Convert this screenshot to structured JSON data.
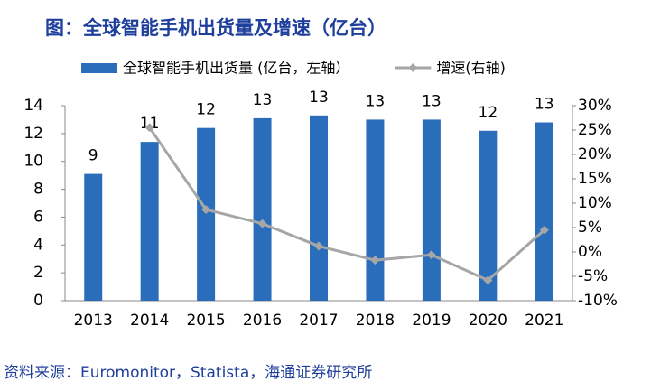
{
  "chart_data": {
    "type": "bar",
    "title": "图：全球智能手机出货量及增速（亿台）",
    "source": "资料来源：Euromonitor，Statista，海通证券研究所",
    "categories": [
      "2013",
      "2014",
      "2015",
      "2016",
      "2017",
      "2018",
      "2019",
      "2020",
      "2021"
    ],
    "series": [
      {
        "name": "全球智能手机出货量 (亿台，左轴）",
        "color": "#2a6ebb",
        "type": "bar",
        "values": [
          9.1,
          11.4,
          12.4,
          13.1,
          13.3,
          13.0,
          13.0,
          12.2,
          12.8
        ],
        "value_labels": [
          "9",
          "11",
          "12",
          "13",
          "13",
          "13",
          "13",
          "12",
          "13"
        ]
      },
      {
        "name": "增速(右轴)",
        "color": "#a6a6a6",
        "type": "line",
        "axis": "y2",
        "values": [
          null,
          25.5,
          8.7,
          5.8,
          1.2,
          -1.7,
          -0.6,
          -5.8,
          4.5
        ]
      }
    ],
    "ylim": [
      0,
      14
    ],
    "yticks": [
      0,
      2,
      4,
      6,
      8,
      10,
      12,
      14
    ],
    "y2lim": [
      -10,
      30
    ],
    "y2ticks": [
      {
        "value": -10,
        "label": "-10%"
      },
      {
        "value": -5,
        "label": "-5%"
      },
      {
        "value": 0,
        "label": "0%"
      },
      {
        "value": 5,
        "label": "5%"
      },
      {
        "value": 10,
        "label": "10%"
      },
      {
        "value": 15,
        "label": "15%"
      },
      {
        "value": 20,
        "label": "20%"
      },
      {
        "value": 25,
        "label": "25%"
      },
      {
        "value": 30,
        "label": "30%"
      }
    ],
    "legend": "top"
  }
}
